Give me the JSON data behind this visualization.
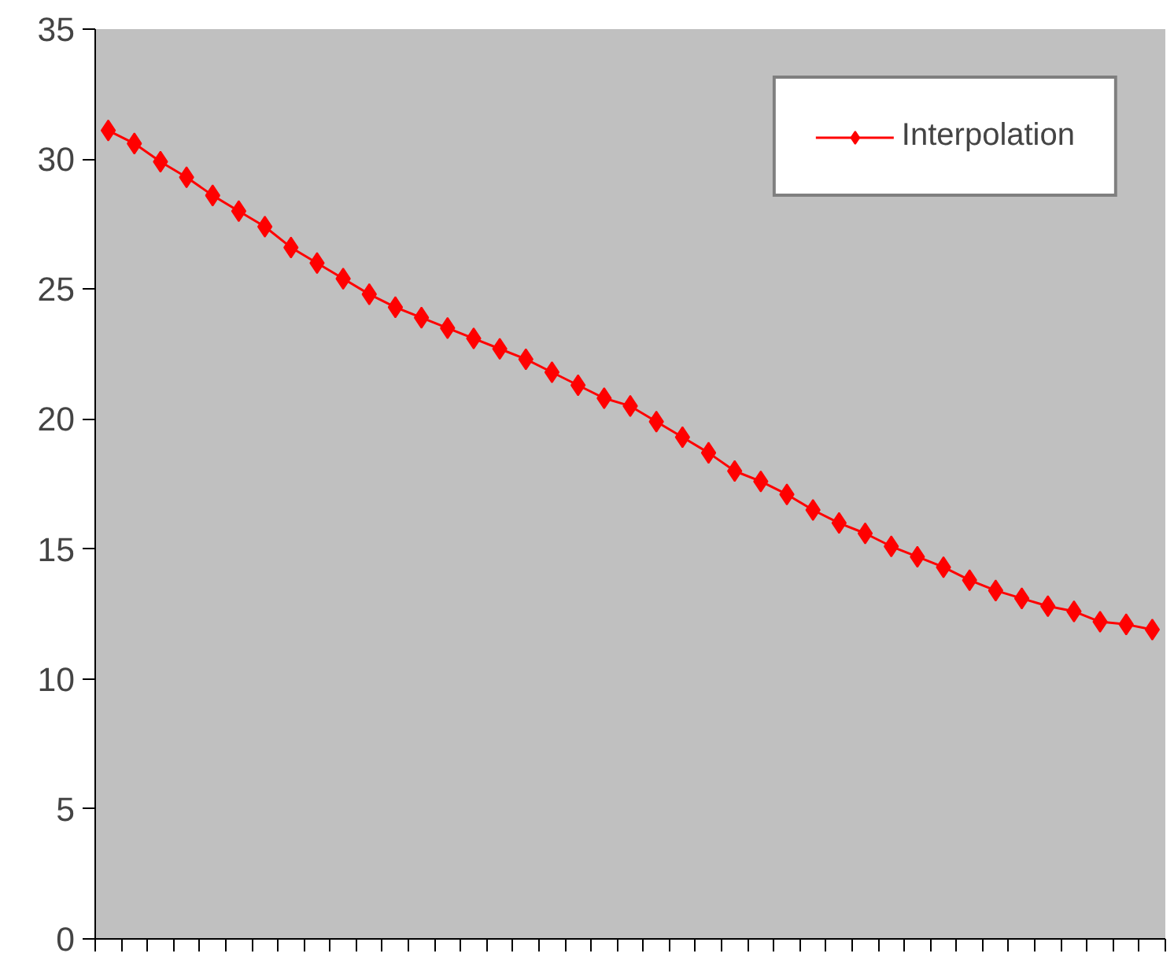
{
  "chart_data": {
    "type": "line",
    "categories": [
      null,
      null,
      null,
      null,
      null,
      null,
      null,
      null,
      null,
      null,
      null,
      null,
      null,
      null,
      null,
      null,
      null,
      null,
      null,
      null,
      null,
      null,
      null,
      null,
      null,
      null,
      null,
      null,
      null,
      null,
      null,
      null,
      null,
      null,
      null,
      null,
      null,
      null,
      null,
      null,
      null
    ],
    "series": [
      {
        "name": "Interpolation",
        "color": "#ff0000",
        "values": [
          31.1,
          30.6,
          29.9,
          29.3,
          28.6,
          28.0,
          27.4,
          26.6,
          26.0,
          25.4,
          24.8,
          24.3,
          23.9,
          23.5,
          23.1,
          22.7,
          22.3,
          21.8,
          21.3,
          20.8,
          20.5,
          19.9,
          19.3,
          18.7,
          18.0,
          17.6,
          17.1,
          16.5,
          16.0,
          15.6,
          15.1,
          14.7,
          14.3,
          13.8,
          13.4,
          13.1,
          12.8,
          12.6,
          12.2,
          12.1,
          11.9
        ]
      }
    ],
    "ylim": [
      0,
      35
    ],
    "yticks": [
      0,
      5,
      10,
      15,
      20,
      25,
      30,
      35
    ],
    "grid": false,
    "legend": "top right",
    "marker": "diamond",
    "line_style": "solid",
    "tick_labels": "y"
  }
}
